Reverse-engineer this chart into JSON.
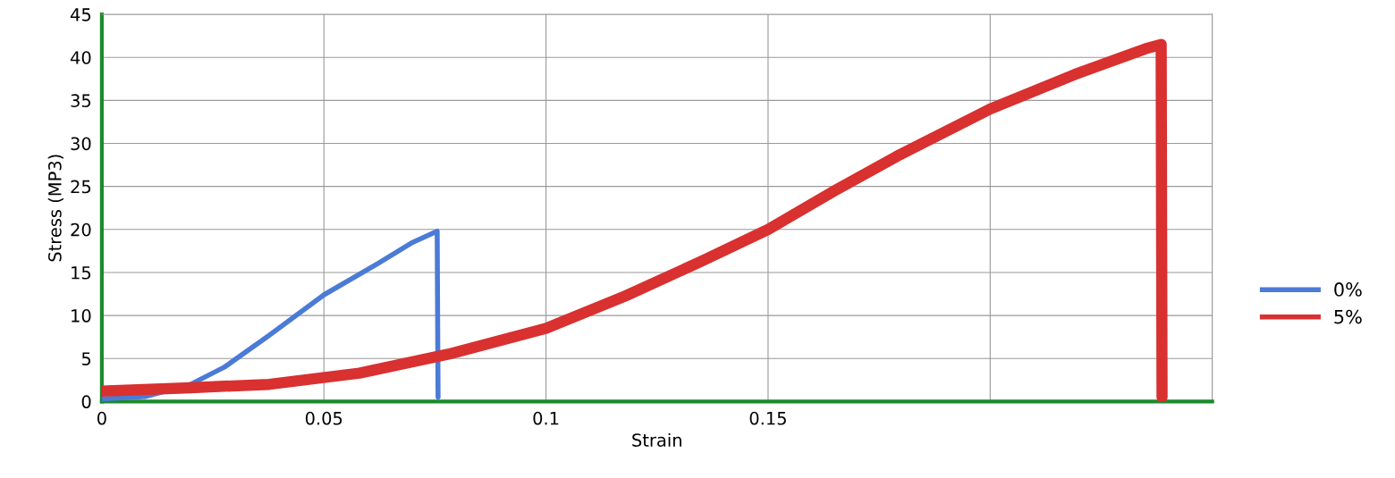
{
  "chart_data": {
    "type": "line",
    "xlabel": "Strain",
    "ylabel": "Stress (MP3)",
    "xlim": [
      0,
      0.25
    ],
    "ylim": [
      0,
      45
    ],
    "xticks": [
      0,
      0.05,
      0.1,
      0.15,
      {
        "value": 0.2,
        "label": null
      },
      {
        "value": 0.25,
        "label": null
      }
    ],
    "yticks": [
      0,
      5,
      10,
      15,
      20,
      25,
      30,
      35,
      40,
      45
    ],
    "grid": true,
    "legend": "right",
    "marker": "none",
    "line_style": "solid",
    "series": [
      {
        "name": "0%",
        "color": "#4a7bd6",
        "x": [
          0,
          0.01,
          0.02,
          0.0276,
          0.0377,
          0.05,
          0.062,
          0.07,
          0.0755,
          0.0756,
          0.0757
        ],
        "values": [
          0.3,
          0.6,
          2,
          4,
          7.7,
          12.4,
          16,
          18.5,
          19.8,
          10,
          0.5
        ]
      },
      {
        "name": "5%",
        "color": "#d93030",
        "x": [
          0,
          0.02,
          0.0377,
          0.058,
          0.078,
          0.1,
          0.118,
          0.135,
          0.15,
          0.165,
          0.179,
          0.2,
          0.219,
          0.235,
          0.2385,
          0.2386,
          0.2387
        ],
        "values": [
          1.2,
          1.6,
          2,
          3.3,
          5.5,
          8.5,
          12.3,
          16.3,
          20,
          24.5,
          28.5,
          34,
          38,
          41,
          41.5,
          20,
          0.5
        ]
      }
    ]
  }
}
